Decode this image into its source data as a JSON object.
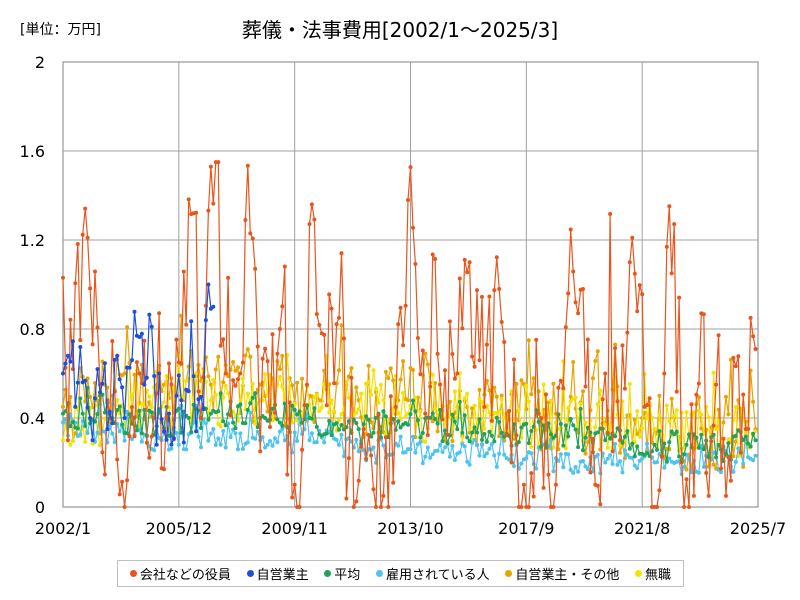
{
  "chart_data": {
    "type": "line",
    "title": "葬儀・法事費用[2002/1～2025/3]",
    "unit_label": "[単位：万円]",
    "x_tick_labels": [
      "2002/1",
      "2005/12",
      "2009/11",
      "2013/10",
      "2017/9",
      "2021/8",
      "2025/7"
    ],
    "y_tick_labels": [
      "0",
      "0.4",
      "0.8",
      "1.2",
      "1.6",
      "2"
    ],
    "ylim": [
      0,
      2
    ],
    "x_range_months": [
      0,
      282
    ],
    "grid": true,
    "legend_position": "bottom",
    "series": [
      {
        "name": "会社などの役員",
        "color": "#E8561C",
        "keypoints": [
          [
            0,
            1.03
          ],
          [
            2,
            0.3
          ],
          [
            4,
            0.62
          ],
          [
            7,
            0.75
          ],
          [
            10,
            1.21
          ],
          [
            15,
            0.55
          ],
          [
            19,
            0.4
          ],
          [
            26,
            0.12
          ],
          [
            31,
            0.6
          ],
          [
            37,
            0.4
          ],
          [
            41,
            0.17
          ],
          [
            47,
            0.65
          ],
          [
            53,
            1.32
          ],
          [
            56,
            0.4
          ],
          [
            60,
            1.53
          ],
          [
            66,
            0.6
          ],
          [
            72,
            0.6
          ],
          [
            74,
            1.29
          ],
          [
            78,
            1.07
          ],
          [
            80,
            0.25
          ],
          [
            88,
            0.8
          ],
          [
            94,
            0.1
          ],
          [
            99,
            0.55
          ],
          [
            101,
            1.36
          ],
          [
            105,
            0.78
          ],
          [
            112,
            0.85
          ],
          [
            116,
            0.22
          ],
          [
            122,
            0.35
          ],
          [
            126,
            0.08
          ],
          [
            130,
            0.05
          ],
          [
            135,
            0.45
          ],
          [
            140,
            1.38
          ],
          [
            147,
            0.42
          ],
          [
            153,
            0.55
          ],
          [
            160,
            0.6
          ],
          [
            165,
            1.1
          ],
          [
            171,
            0.45
          ],
          [
            177,
            0.98
          ],
          [
            182,
            0.2
          ],
          [
            187,
            0.1
          ],
          [
            193,
            0.42
          ],
          [
            200,
            0.1
          ],
          [
            205,
            0.96
          ],
          [
            211,
            0.98
          ],
          [
            216,
            0.1
          ],
          [
            220,
            0.6
          ],
          [
            226,
            0.3
          ],
          [
            230,
            1.1
          ],
          [
            236,
            0.45
          ],
          [
            240,
            0.0
          ],
          [
            244,
            0.6
          ],
          [
            247,
            1.05
          ],
          [
            251,
            0.2
          ],
          [
            256,
            0.05
          ],
          [
            259,
            0.87
          ],
          [
            262,
            0.05
          ],
          [
            265,
            0.55
          ],
          [
            269,
            0.05
          ],
          [
            272,
            0.67
          ],
          [
            277,
            0.35
          ],
          [
            279,
            0.85
          ],
          [
            281,
            0.71
          ]
        ],
        "amp": 0.35,
        "low": 0.0,
        "high": 1.55
      },
      {
        "name": "自営業主",
        "color": "#1F4FD8",
        "keypoints": [
          [
            0,
            0.6
          ],
          [
            2,
            0.68
          ],
          [
            5,
            0.45
          ],
          [
            8,
            0.56
          ],
          [
            11,
            0.4
          ],
          [
            14,
            0.62
          ],
          [
            18,
            0.35
          ],
          [
            22,
            0.68
          ],
          [
            25,
            0.4
          ],
          [
            28,
            0.66
          ],
          [
            30,
            0.77
          ],
          [
            33,
            0.55
          ],
          [
            36,
            0.81
          ],
          [
            38,
            0.28
          ],
          [
            41,
            0.34
          ],
          [
            43,
            0.42
          ],
          [
            46,
            0.5
          ],
          [
            49,
            0.29
          ],
          [
            51,
            0.52
          ],
          [
            54,
            0.34
          ],
          [
            57,
            0.44
          ],
          [
            59,
            1.0
          ],
          [
            61,
            0.9
          ]
        ],
        "amp": 0.18,
        "low": 0.15,
        "high": 1.02
      },
      {
        "name": "平均",
        "color": "#1FA35A",
        "keypoints": [
          [
            0,
            0.42
          ],
          [
            20,
            0.4
          ],
          [
            40,
            0.38
          ],
          [
            60,
            0.42
          ],
          [
            80,
            0.4
          ],
          [
            100,
            0.4
          ],
          [
            120,
            0.35
          ],
          [
            140,
            0.37
          ],
          [
            160,
            0.35
          ],
          [
            180,
            0.33
          ],
          [
            200,
            0.32
          ],
          [
            220,
            0.3
          ],
          [
            240,
            0.28
          ],
          [
            260,
            0.26
          ],
          [
            281,
            0.3
          ]
        ],
        "amp": 0.07,
        "low": 0.18,
        "high": 0.56
      },
      {
        "name": "雇用されている人",
        "color": "#4FC3EF",
        "keypoints": [
          [
            0,
            0.38
          ],
          [
            20,
            0.33
          ],
          [
            40,
            0.3
          ],
          [
            60,
            0.33
          ],
          [
            80,
            0.3
          ],
          [
            100,
            0.3
          ],
          [
            120,
            0.25
          ],
          [
            140,
            0.26
          ],
          [
            160,
            0.24
          ],
          [
            180,
            0.22
          ],
          [
            200,
            0.22
          ],
          [
            220,
            0.2
          ],
          [
            240,
            0.2
          ],
          [
            260,
            0.18
          ],
          [
            281,
            0.23
          ]
        ],
        "amp": 0.06,
        "low": 0.12,
        "high": 0.5
      },
      {
        "name": "自営業主・その他",
        "color": "#E8A400",
        "keypoints": [
          [
            0,
            0.45
          ],
          [
            20,
            0.5
          ],
          [
            40,
            0.52
          ],
          [
            60,
            0.55
          ],
          [
            80,
            0.55
          ],
          [
            100,
            0.5
          ],
          [
            120,
            0.48
          ],
          [
            140,
            0.48
          ],
          [
            160,
            0.45
          ],
          [
            180,
            0.42
          ],
          [
            200,
            0.42
          ],
          [
            220,
            0.38
          ],
          [
            240,
            0.35
          ],
          [
            260,
            0.33
          ],
          [
            281,
            0.35
          ]
        ],
        "amp": 0.17,
        "low": 0.05,
        "high": 0.95
      },
      {
        "name": "無職",
        "color": "#F2E205",
        "keypoints": [
          [
            0,
            0.3
          ],
          [
            20,
            0.4
          ],
          [
            40,
            0.45
          ],
          [
            60,
            0.48
          ],
          [
            80,
            0.48
          ],
          [
            100,
            0.46
          ],
          [
            120,
            0.44
          ],
          [
            140,
            0.42
          ],
          [
            160,
            0.4
          ],
          [
            180,
            0.38
          ],
          [
            200,
            0.38
          ],
          [
            220,
            0.37
          ],
          [
            240,
            0.35
          ],
          [
            260,
            0.33
          ],
          [
            281,
            0.34
          ]
        ],
        "amp": 0.12,
        "low": 0.08,
        "high": 0.88
      }
    ]
  }
}
